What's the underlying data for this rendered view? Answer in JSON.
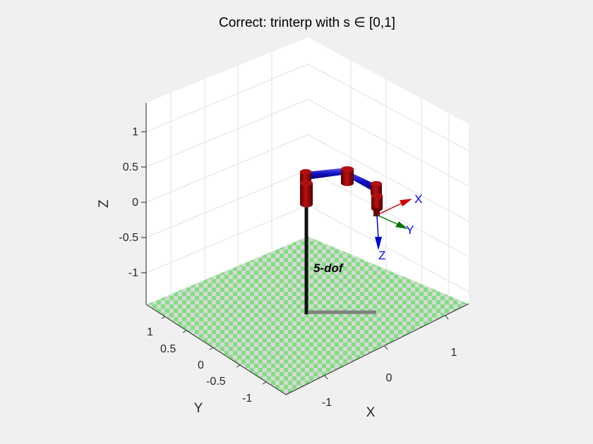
{
  "chart_data": {
    "type": "3d-plot",
    "title": "Correct: trinterp with s ∈ [0,1]",
    "xlabel": "X",
    "ylabel": "Y",
    "zlabel": "Z",
    "x_ticks": [
      "-1",
      "0",
      "1"
    ],
    "y_ticks": [
      "-1",
      "-0.5",
      "0",
      "0.5",
      "1"
    ],
    "z_ticks": [
      "-1",
      "-0.5",
      "0",
      "0.5",
      "1"
    ],
    "grid": true,
    "floor_colors": [
      "#80e080",
      "#d8d8d8"
    ],
    "robot": {
      "name": "5-dof",
      "joint_color": "#8b0000",
      "link_color": "#1010c0",
      "pedestal_color": "#111111",
      "shadow_color": "#808080"
    },
    "tool_frame": {
      "axes": [
        {
          "label": "X",
          "color": "#cc0000"
        },
        {
          "label": "Y",
          "color": "#007700"
        },
        {
          "label": "Z",
          "color": "#0000cc"
        }
      ]
    }
  }
}
